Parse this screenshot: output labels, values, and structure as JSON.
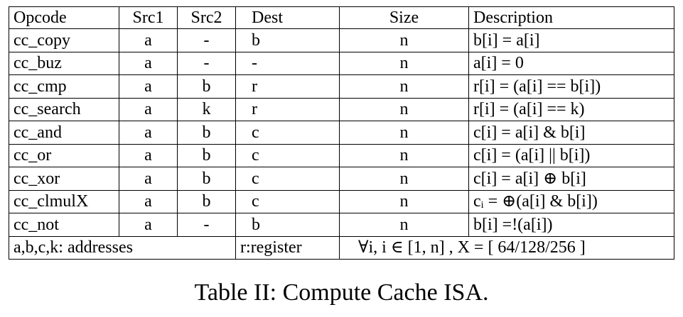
{
  "table": {
    "headers": {
      "opcode": "Opcode",
      "src1": "Src1",
      "src2": "Src2",
      "dest": "Dest",
      "size": "Size",
      "description": "Description"
    },
    "rows": [
      {
        "opcode": "cc_copy",
        "src1": "a",
        "src2": "-",
        "dest": "b",
        "size": "n",
        "description": "b[i] = a[i]"
      },
      {
        "opcode": "cc_buz",
        "src1": "a",
        "src2": "-",
        "dest": "-",
        "size": "n",
        "description": "a[i] = 0"
      },
      {
        "opcode": "cc_cmp",
        "src1": "a",
        "src2": "b",
        "dest": "r",
        "size": "n",
        "description": "r[i] = (a[i] == b[i])"
      },
      {
        "opcode": "cc_search",
        "src1": "a",
        "src2": "k",
        "dest": "r",
        "size": "n",
        "description": "r[i] = (a[i] == k)"
      },
      {
        "opcode": "cc_and",
        "src1": "a",
        "src2": "b",
        "dest": "c",
        "size": "n",
        "description": "c[i] = a[i] & b[i]"
      },
      {
        "opcode": "cc_or",
        "src1": "a",
        "src2": "b",
        "dest": "c",
        "size": "n",
        "description": "c[i] = (a[i] || b[i])"
      },
      {
        "opcode": "cc_xor",
        "src1": "a",
        "src2": "b",
        "dest": "c",
        "size": "n",
        "description": "c[i] = a[i] ⊕ b[i]"
      },
      {
        "opcode": "cc_clmulX",
        "src1": "a",
        "src2": "b",
        "dest": "c",
        "size": "n",
        "description": "cᵢ = ⊕(a[i] & b[i])"
      },
      {
        "opcode": "cc_not",
        "src1": "a",
        "src2": "-",
        "dest": "b",
        "size": "n",
        "description": "b[i] =!(a[i])"
      }
    ],
    "footer": {
      "addresses": "a,b,c,k: addresses",
      "register": "r:register",
      "range": "∀i, i ∈ [1, n] , X = [ 64/128/256 ]"
    }
  },
  "caption": "Table II: Compute Cache ISA."
}
